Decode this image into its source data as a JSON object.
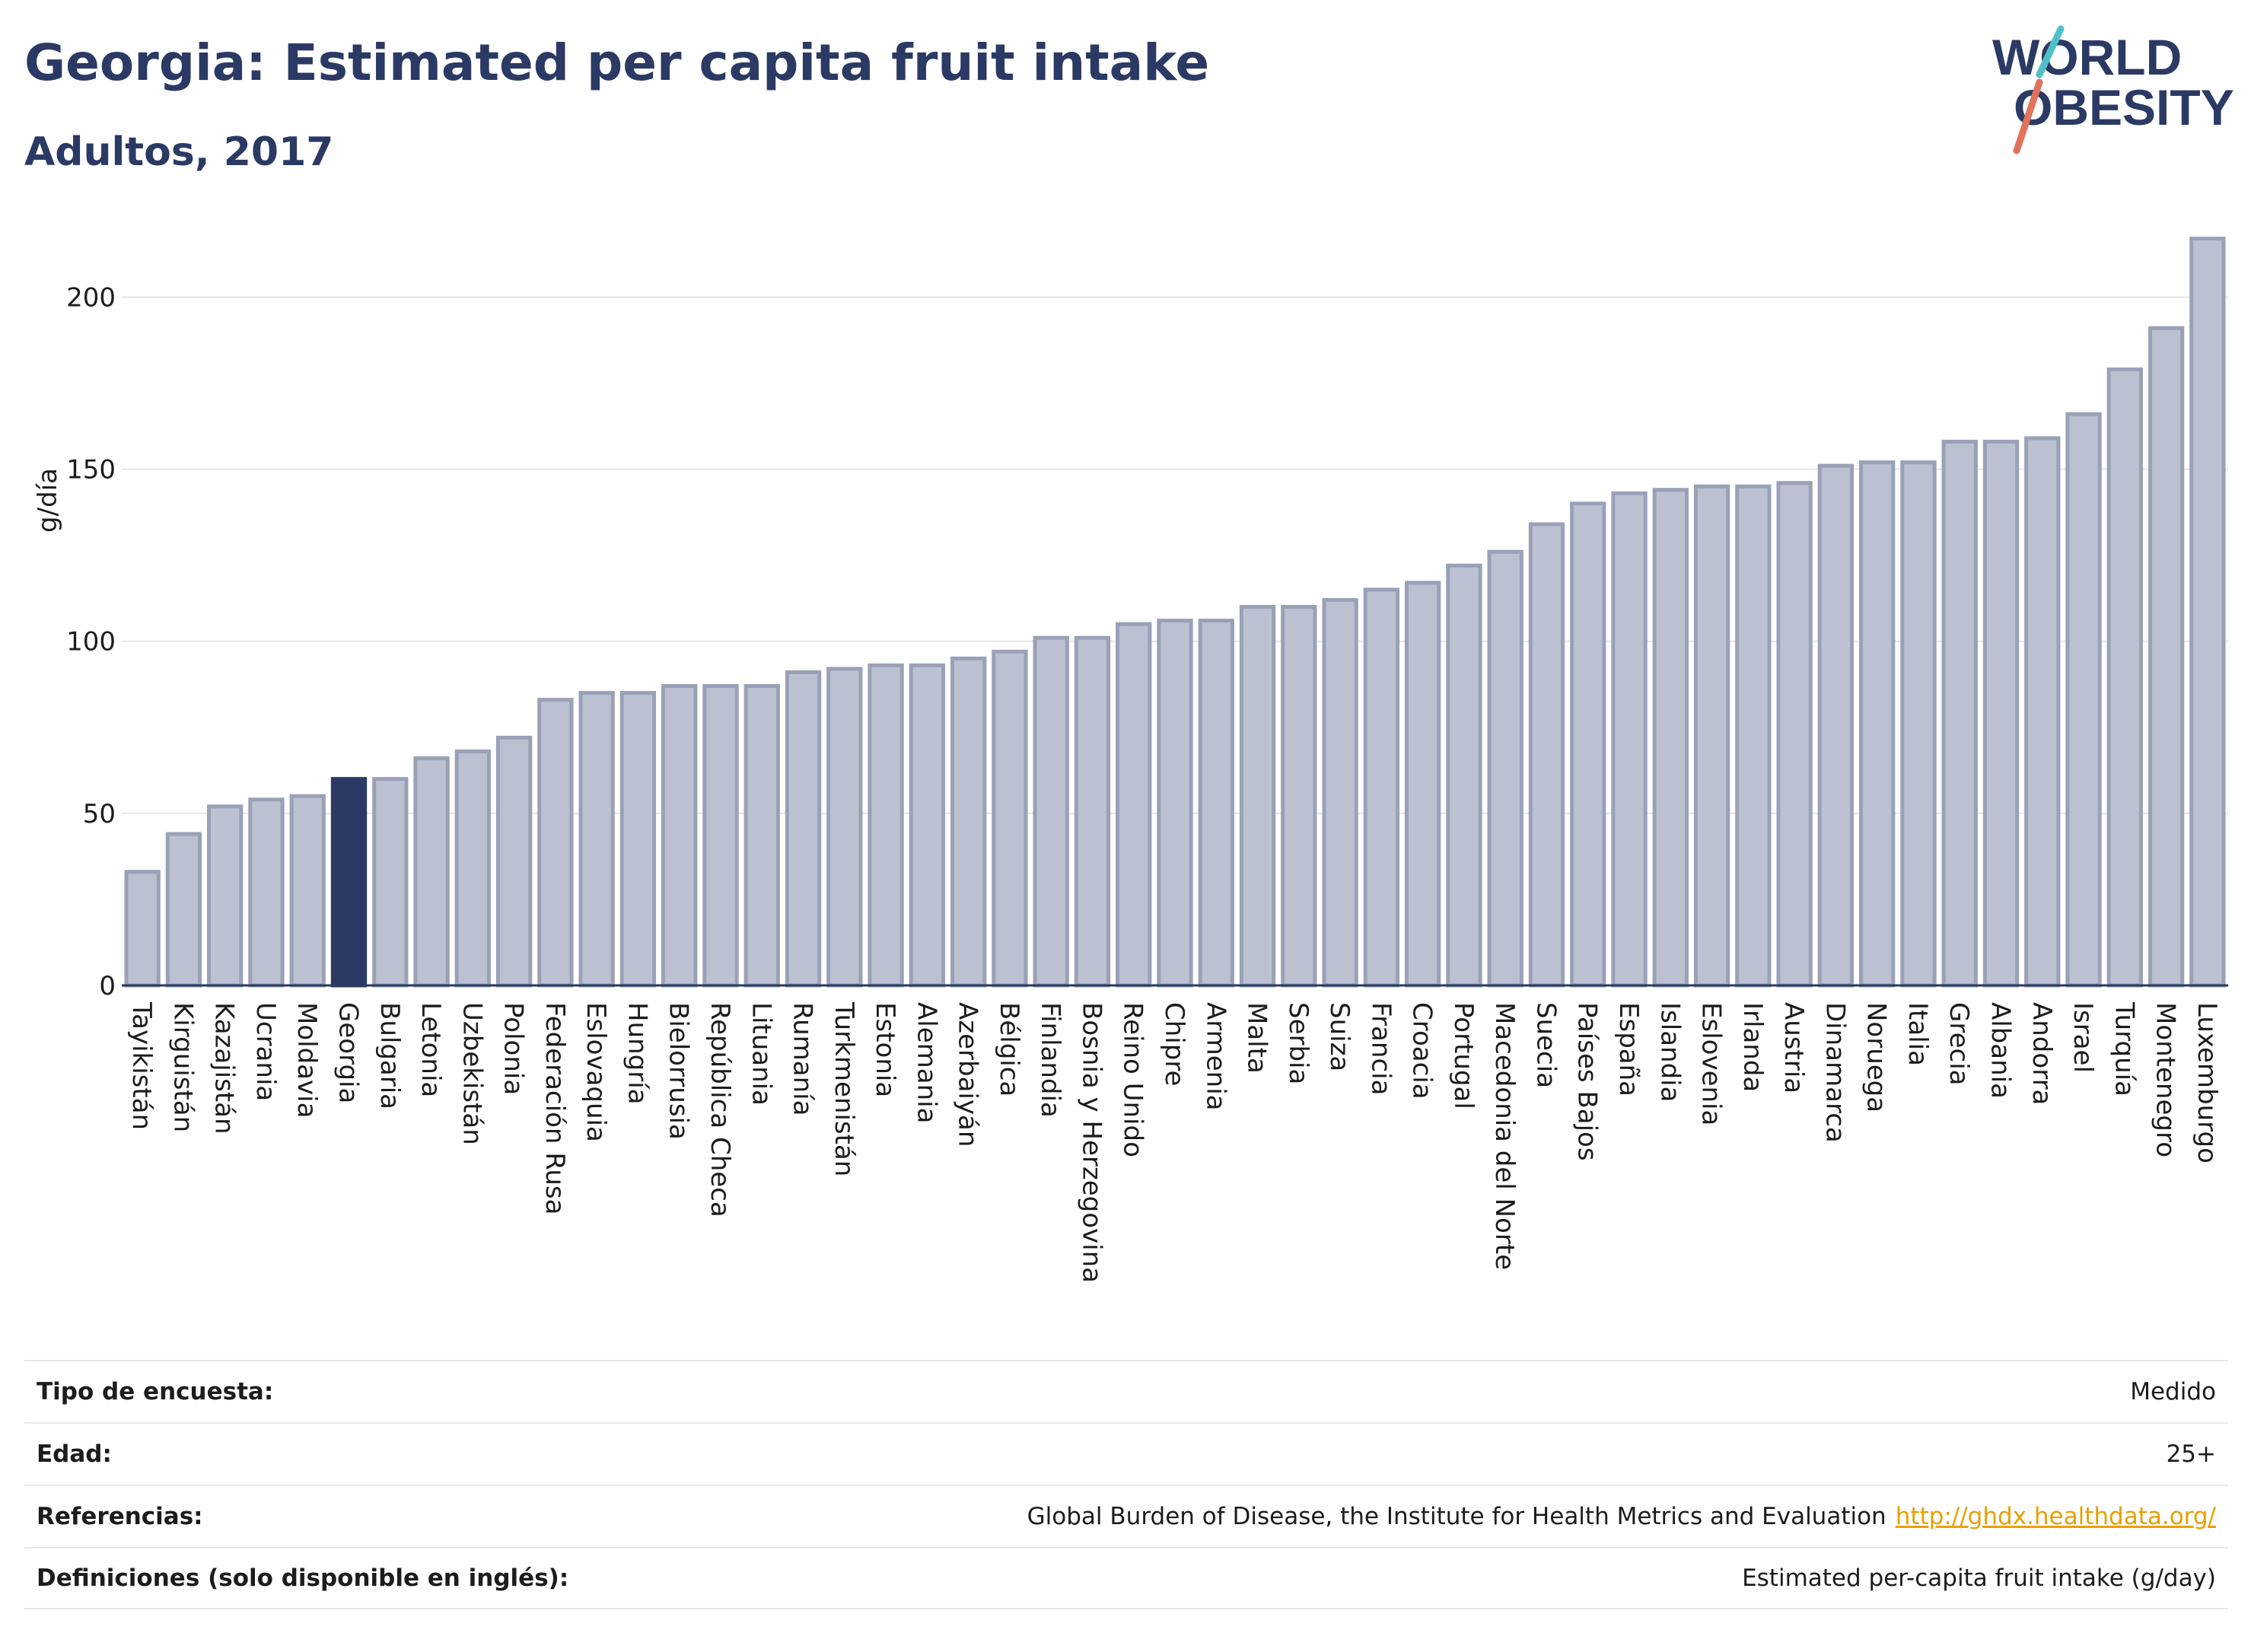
{
  "header": {
    "title": "Georgia: Estimated per capita fruit intake",
    "subtitle": "Adultos, 2017"
  },
  "logo": {
    "line1": "WORLD",
    "line2": "OBESITY",
    "slash_colors": [
      "#4fc0c8",
      "#e2725b"
    ]
  },
  "chart_data": {
    "type": "bar",
    "ylabel": "g/día",
    "ylim": [
      0,
      220
    ],
    "yticks": [
      0,
      50,
      100,
      150,
      200
    ],
    "grid": true,
    "highlight": "Georgia",
    "colors": {
      "bar": "#bcc1d1",
      "bar_edge": "#9aa1b7",
      "highlight": "#2b3a64",
      "grid": "#e6e6e6",
      "axis": "#2b3a64"
    },
    "categories": [
      "Tayikistán",
      "Kirguistán",
      "Kazajistán",
      "Ucrania",
      "Moldavia",
      "Georgia",
      "Bulgaria",
      "Letonia",
      "Uzbekistán",
      "Polonia",
      "Federación Rusa",
      "Eslovaquia",
      "Hungría",
      "Bielorrusia",
      "República Checa",
      "Lituania",
      "Rumanía",
      "Turkmenistán",
      "Estonia",
      "Alemania",
      "Azerbaiyán",
      "Bélgica",
      "Finlandia",
      "Bosnia y Herzegovina",
      "Reino Unido",
      "Chipre",
      "Armenia",
      "Malta",
      "Serbia",
      "Suiza",
      "Francia",
      "Croacia",
      "Portugal",
      "Macedonia del Norte",
      "Suecia",
      "Países Bajos",
      "España",
      "Islandia",
      "Eslovenia",
      "Irlanda",
      "Austria",
      "Dinamarca",
      "Noruega",
      "Italia",
      "Grecia",
      "Albania",
      "Andorra",
      "Israel",
      "Turquía",
      "Montenegro",
      "Luxemburgo"
    ],
    "values": [
      33,
      44,
      52,
      54,
      55,
      60,
      60,
      66,
      68,
      72,
      83,
      85,
      85,
      87,
      87,
      87,
      91,
      92,
      93,
      93,
      95,
      97,
      101,
      101,
      105,
      106,
      106,
      110,
      110,
      112,
      115,
      117,
      122,
      126,
      134,
      140,
      143,
      144,
      145,
      145,
      146,
      151,
      152,
      152,
      158,
      158,
      159,
      166,
      179,
      191,
      217
    ]
  },
  "info": {
    "rows": [
      {
        "label": "Tipo de encuesta:",
        "value": "Medido"
      },
      {
        "label": "Edad:",
        "value": "25+"
      },
      {
        "label": "Referencias:",
        "value": "Global Burden of Disease, the Institute for Health Metrics and Evaluation",
        "link": "http://ghdx.healthdata.org/"
      },
      {
        "label": "Definiciones (solo disponible en inglés):",
        "value": "Estimated per-capita fruit intake (g/day)"
      }
    ]
  }
}
